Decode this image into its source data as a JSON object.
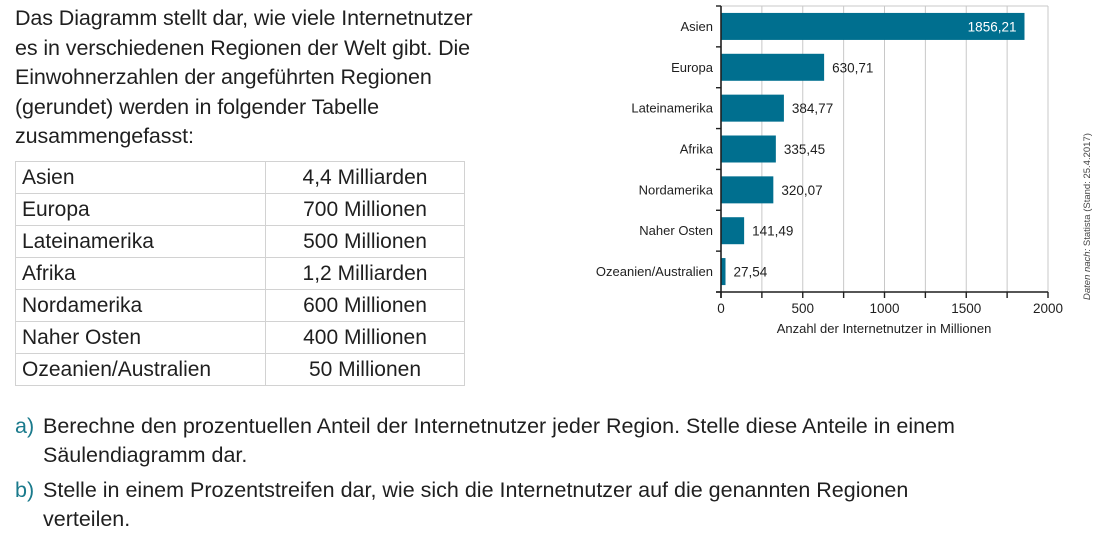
{
  "intro": {
    "lines": [
      "Das Diagramm stellt dar, wie viele Internetnutzer",
      "es in verschiedenen Regionen der Welt gibt. Die",
      "Einwohnerzahlen der angeführten Regionen",
      "(gerundet) werden in folgender Tabelle",
      "zusammengefasst:"
    ]
  },
  "population_table": {
    "rows": [
      {
        "region": "Asien",
        "population": "4,4 Milliarden"
      },
      {
        "region": "Europa",
        "population": "700 Millionen"
      },
      {
        "region": "Lateinamerika",
        "population": "500 Millionen"
      },
      {
        "region": "Afrika",
        "population": "1,2 Milliarden"
      },
      {
        "region": "Nordamerika",
        "population": "600 Millionen"
      },
      {
        "region": "Naher Osten",
        "population": "400 Millionen"
      },
      {
        "region": "Ozeanien/Australien",
        "population": "50 Millionen"
      }
    ]
  },
  "chart_data": {
    "type": "bar",
    "orientation": "horizontal",
    "categories": [
      "Asien",
      "Europa",
      "Lateinamerika",
      "Afrika",
      "Nordamerika",
      "Naher Osten",
      "Ozeanien/Australien"
    ],
    "values": [
      1856.21,
      630.71,
      384.77,
      335.45,
      320.07,
      141.49,
      27.54
    ],
    "value_labels": [
      "1856,21",
      "630,71",
      "384,77",
      "335,45",
      "320,07",
      "141,49",
      "27,54"
    ],
    "title": "",
    "xlabel": "Anzahl der Internetnutzer in Millionen",
    "ylabel": "",
    "xlim": [
      0,
      2000
    ],
    "xticks": [
      0,
      500,
      1000,
      1500,
      2000
    ],
    "xtick_labels": [
      "0",
      "500",
      "1000",
      "1500",
      "2000"
    ],
    "minor_xticks": [
      250,
      750,
      1250,
      1750
    ],
    "grid": true,
    "bar_color": "#006f8f",
    "source_note_prefix": "Daten nach:",
    "source_note": "Statista (Stand: 25.4.2017)"
  },
  "tasks": [
    {
      "label": "a)",
      "lines": [
        "Berechne den prozentuellen Anteil der Internetnutzer jeder Region. Stelle diese Anteile in einem",
        "Säulendiagramm dar."
      ]
    },
    {
      "label": "b)",
      "lines": [
        "Stelle in einem Prozentstreifen dar, wie sich die Internetnutzer auf die genannten Regionen",
        "verteilen."
      ]
    }
  ],
  "colors": {
    "accent": "#1a7a8c",
    "bar": "#006f8f",
    "grid": "#c8c8c8",
    "text": "#1f1f1f"
  }
}
